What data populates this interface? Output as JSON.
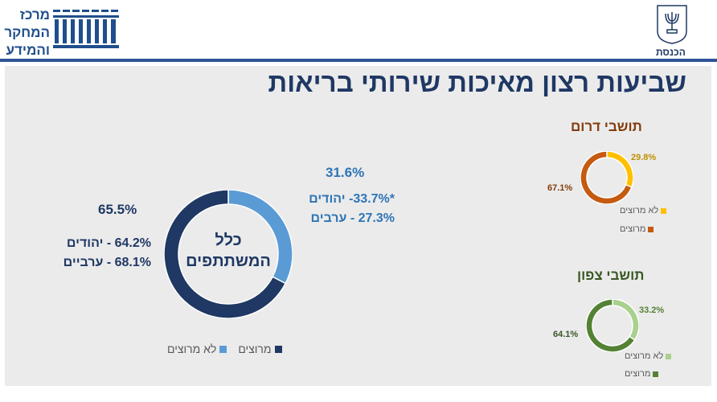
{
  "header": {
    "logo_left_text": "מרכז המחקר והמידע",
    "logo_right_text": "הכנסת"
  },
  "title": "שביעות רצון מאיכות שירותי בריאות",
  "chart_data": [
    {
      "type": "pie",
      "subtype": "donut",
      "center_label": "כלל המשתתפים",
      "categories": [
        "לא מרוצים",
        "מרוצים"
      ],
      "values": [
        31.6,
        65.5
      ],
      "colors": [
        "#5b9bd5",
        "#1f3864"
      ],
      "annotations": {
        "not_satisfied": [
          "*33.7%- יהודים",
          "27.3% - ערבים"
        ],
        "satisfied": [
          "64.2% - יהודים",
          "68.1% - ערביים"
        ]
      },
      "legend": "bottom"
    },
    {
      "type": "pie",
      "subtype": "donut",
      "title": "תושבי דרום",
      "categories": [
        "לא מרוצים",
        "מרוצים"
      ],
      "values": [
        29.8,
        67.1
      ],
      "colors": [
        "#ffc000",
        "#c55a11"
      ],
      "label_colors": [
        "#bf9000",
        "#843c0c"
      ],
      "title_color": "#843c0c",
      "legend": "right"
    },
    {
      "type": "pie",
      "subtype": "donut",
      "title": "תושבי צפון",
      "categories": [
        "לא מרוצים",
        "מרוצים"
      ],
      "values": [
        33.2,
        64.1
      ],
      "colors": [
        "#a9d18e",
        "#548235"
      ],
      "label_colors": [
        "#548235",
        "#385723"
      ],
      "title_color": "#385723",
      "legend": "right"
    }
  ]
}
